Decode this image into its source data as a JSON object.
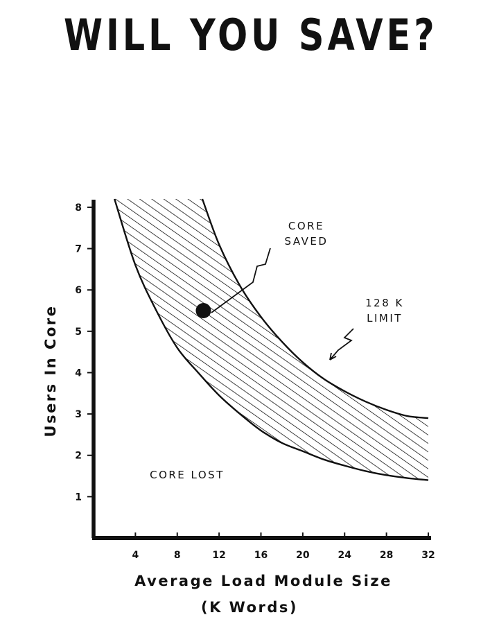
{
  "chart_data": {
    "type": "area",
    "title": "WILL YOU SAVE?",
    "xlabel": "Average Load Module Size",
    "xlabel_units": "(K Words)",
    "ylabel": "Users In Core",
    "xlim": [
      0,
      32
    ],
    "ylim": [
      0,
      8.2
    ],
    "xticks": [
      4,
      8,
      12,
      16,
      20,
      24,
      28,
      32
    ],
    "yticks": [
      1,
      2,
      3,
      4,
      5,
      6,
      7,
      8
    ],
    "grid": false,
    "series": [
      {
        "name": "128 K LIMIT",
        "x": [
          10.4,
          12,
          14,
          16,
          18,
          20,
          22,
          24,
          26,
          28,
          30,
          32
        ],
        "y": [
          8.2,
          7.1,
          6.1,
          5.35,
          4.75,
          4.25,
          3.85,
          3.55,
          3.3,
          3.1,
          2.95,
          2.9
        ]
      },
      {
        "name": "lower boundary",
        "x": [
          2,
          4,
          6,
          8,
          10,
          12,
          14,
          16,
          18,
          20,
          22,
          24,
          26,
          28,
          30,
          32
        ],
        "y": [
          8.2,
          6.6,
          5.5,
          4.6,
          4.0,
          3.45,
          3.0,
          2.6,
          2.3,
          2.1,
          1.9,
          1.75,
          1.62,
          1.52,
          1.45,
          1.4
        ]
      }
    ],
    "point": {
      "x": 10.5,
      "y": 5.5
    },
    "annotations": [
      {
        "lines": [
          "CORE",
          "SAVED"
        ]
      },
      {
        "lines": [
          "128  K",
          "LIMIT"
        ]
      },
      {
        "lines": [
          "CORE   LOST"
        ]
      }
    ]
  }
}
